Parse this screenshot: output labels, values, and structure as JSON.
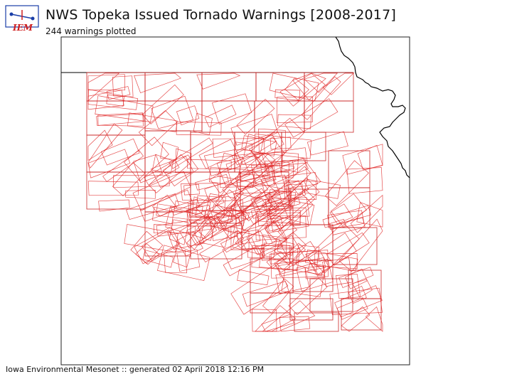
{
  "header": {
    "title": "NWS Topeka Issued Tornado Warnings [2008-2017]",
    "subtitle": "244 warnings plotted",
    "logo_text": "IEM"
  },
  "footer": {
    "credit": "Iowa Environmental Mesonet :: generated 02 April 2018 12:16 PM"
  },
  "colors": {
    "warning_polygon": "#e02020",
    "county_border": "#c81e1e",
    "state_border": "#000000",
    "logo_blue": "#1a3ea8",
    "logo_red": "#d02020"
  }
}
